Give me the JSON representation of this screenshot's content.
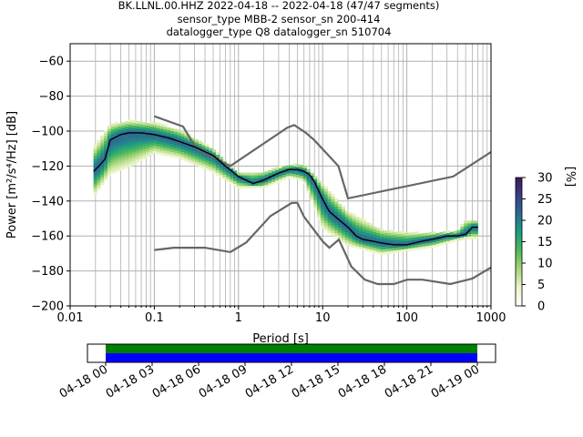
{
  "title_lines": [
    "BK.LLNL.00.HHZ   2022-04-18 -- 2022-04-18  (47/47 segments)",
    "sensor_type MBB-2 sensor_sn 200-414",
    "datalogger_type Q8 datalogger_sn 510704"
  ],
  "colors": {
    "grid": "#b0b0b0",
    "noise_models": "#666666",
    "mode": "#000000",
    "coverage_data": "#008000",
    "coverage_gaps": "#0000ff"
  },
  "chart_data": {
    "type": "heatmap",
    "subtype": "probabilistic power spectral density",
    "xlabel": "Period [s]",
    "ylabel": "Power [m²/s⁴/Hz] [dB]",
    "xscale": "log",
    "xlim": [
      0.01,
      1000
    ],
    "ylim": [
      -200,
      -50
    ],
    "xticks": [
      0.01,
      0.1,
      1,
      10,
      100,
      1000
    ],
    "xtick_labels": [
      "0.01",
      "0.1",
      "1",
      "10",
      "100",
      "1000"
    ],
    "yticks": [
      -200,
      -180,
      -160,
      -140,
      -120,
      -100,
      -80,
      -60
    ],
    "ytick_labels": [
      "−200",
      "−180",
      "−160",
      "−140",
      "−120",
      "−100",
      "−80",
      "−60"
    ],
    "grid": true,
    "colorbar": {
      "label": "[%]",
      "range": [
        0,
        30
      ],
      "ticks": [
        0,
        5,
        10,
        15,
        20,
        25,
        30
      ],
      "tick_labels": [
        "0",
        "5",
        "10",
        "15",
        "20",
        "25",
        "30"
      ],
      "colormap_stops": [
        "#ffffff",
        "#ebf5c8",
        "#a8d67a",
        "#52b858",
        "#1e9e80",
        "#2b6c8f",
        "#3b3f86",
        "#3c1a58"
      ]
    },
    "mode_line": {
      "period": [
        0.019,
        0.022,
        0.026,
        0.03,
        0.04,
        0.05,
        0.07,
        0.1,
        0.15,
        0.2,
        0.3,
        0.5,
        0.7,
        1.0,
        1.5,
        2.0,
        3.0,
        4.0,
        5.0,
        6.0,
        7.0,
        8.0,
        10,
        12,
        15,
        20,
        25,
        30,
        40,
        50,
        70,
        100,
        150,
        200,
        300,
        400,
        500,
        550,
        600,
        700
      ],
      "power": [
        -123,
        -120,
        -116,
        -105,
        -102,
        -101,
        -101,
        -102,
        -104,
        -106,
        -109,
        -114,
        -120,
        -126,
        -130,
        -128,
        -124,
        -122,
        -122,
        -123,
        -125,
        -129,
        -139,
        -146,
        -150,
        -155,
        -160,
        -162,
        -163,
        -164,
        -165,
        -165,
        -163,
        -162,
        -160,
        -160,
        -159,
        -157,
        -155,
        -155
      ]
    },
    "noise_model_high": {
      "period": [
        0.1,
        0.22,
        0.32,
        0.8,
        3.8,
        4.6,
        6.3,
        7.9,
        15.4,
        20,
        354.8,
        1000
      ],
      "power": [
        -91.5,
        -97.4,
        -110.5,
        -120,
        -98,
        -96.5,
        -101,
        -105,
        -120,
        -138.5,
        -126,
        -112
      ]
    },
    "noise_model_low": {
      "period": [
        0.1,
        0.17,
        0.4,
        0.8,
        1.24,
        2.4,
        4.3,
        5.0,
        6.0,
        10,
        12,
        15.6,
        21.9,
        31.6,
        45,
        70,
        101,
        154,
        328,
        600,
        1000
      ],
      "power": [
        -168,
        -166.7,
        -166.7,
        -169.2,
        -163.7,
        -148.6,
        -141.1,
        -141,
        -149,
        -163,
        -166.7,
        -162.1,
        -177.5,
        -185,
        -187.5,
        -187.5,
        -185,
        -185,
        -187.5,
        -184.4,
        -178
      ]
    },
    "density_band": {
      "period": [
        0.019,
        0.03,
        0.05,
        0.1,
        0.2,
        0.5,
        1.0,
        2.0,
        4.0,
        6.0,
        10,
        20,
        50,
        100,
        200,
        400,
        500,
        700
      ],
      "upper_power": [
        -110,
        -96,
        -94,
        -95,
        -99,
        -110,
        -124,
        -123,
        -119,
        -119,
        -130,
        -146,
        -156,
        -158,
        -158,
        -157,
        -151,
        -151
      ],
      "lower_power": [
        -137,
        -124,
        -120,
        -112,
        -115,
        -123,
        -132,
        -132,
        -126,
        -128,
        -155,
        -165,
        -170,
        -168,
        -166,
        -162,
        -161,
        -161
      ]
    },
    "coverage": {
      "xtick_labels": [
        "04-18 00",
        "04-18 03",
        "04-18 06",
        "04-18 09",
        "04-18 12",
        "04-18 15",
        "04-18 18",
        "04-18 21",
        "04-19 00"
      ],
      "data_available": [
        0,
        24
      ],
      "gaps": []
    }
  }
}
